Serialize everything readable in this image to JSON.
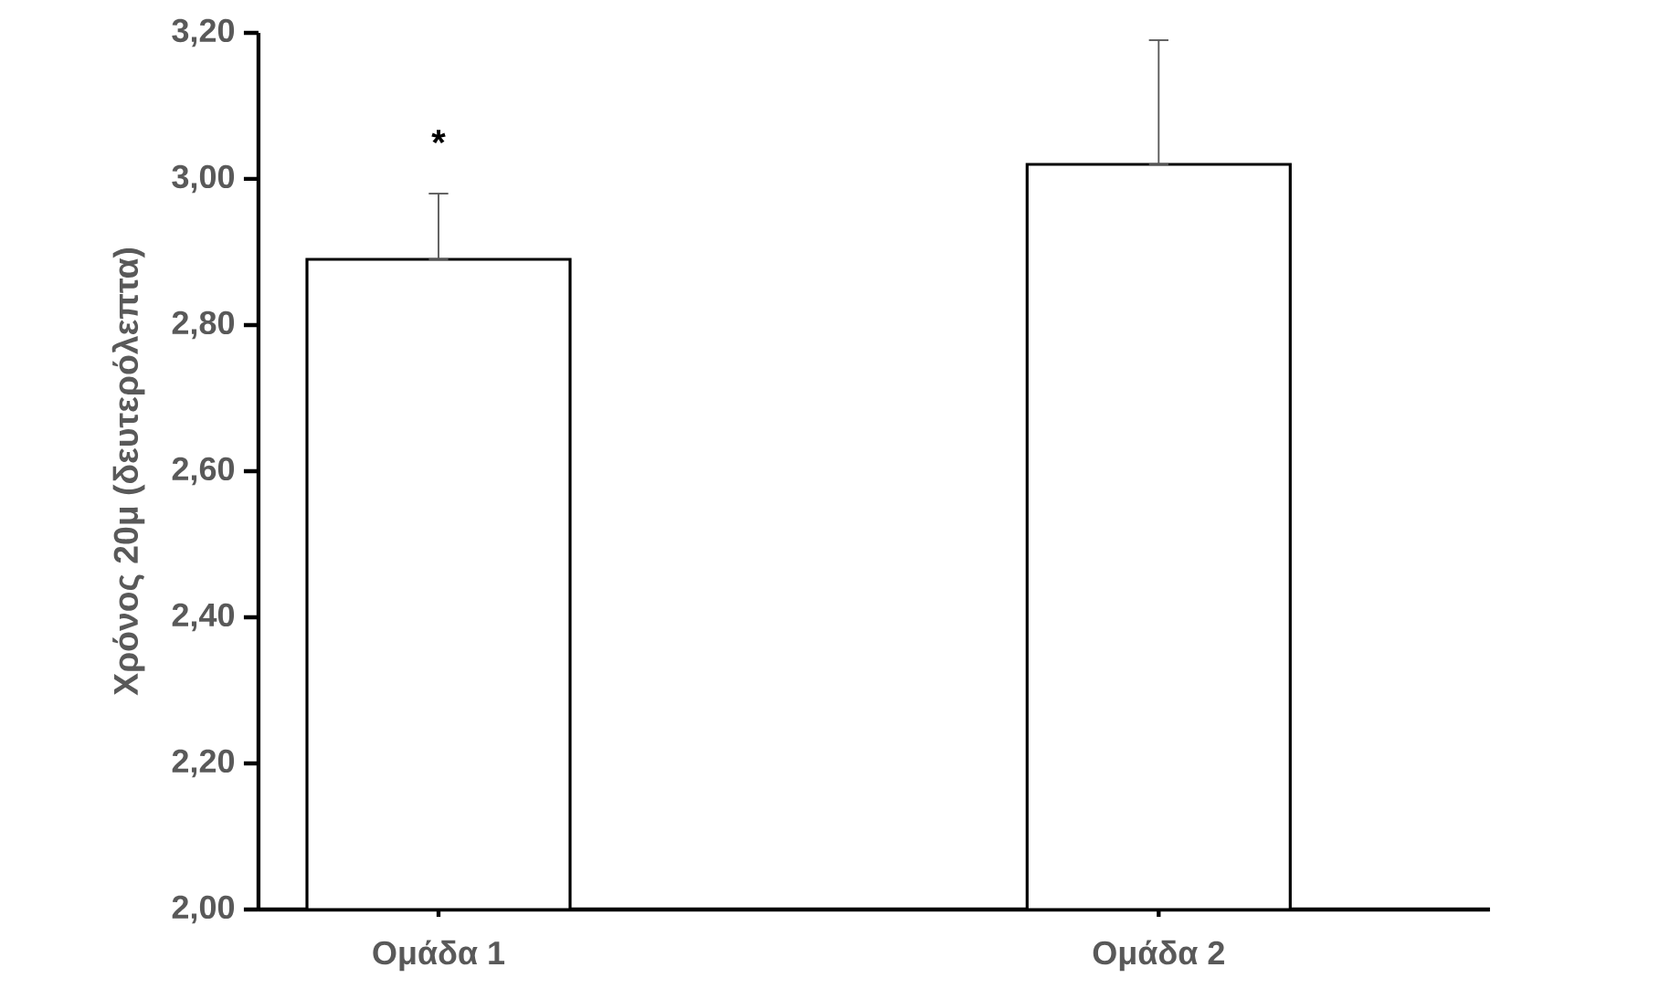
{
  "chart_data": {
    "type": "bar",
    "ylabel": "Χρόνος 20μ (δευτερόλεπτα)",
    "categories": [
      "Ομάδα 1",
      "Ομάδα 2"
    ],
    "values": [
      2.89,
      3.02
    ],
    "errors": [
      [
        2.89,
        2.98
      ],
      [
        3.02,
        3.19
      ]
    ],
    "colors": [
      "#ffffff",
      "#ffffff"
    ],
    "ylim": [
      2.0,
      3.2
    ],
    "yticks": [
      {
        "value": 2.0,
        "label": "2,00"
      },
      {
        "value": 2.2,
        "label": "2,20"
      },
      {
        "value": 2.4,
        "label": "2,40"
      },
      {
        "value": 2.6,
        "label": "2,60"
      },
      {
        "value": 2.8,
        "label": "2,80"
      },
      {
        "value": 3.0,
        "label": "3,00"
      },
      {
        "value": 3.2,
        "label": "3,20"
      }
    ],
    "annotations": [
      "*"
    ],
    "grid": false
  }
}
